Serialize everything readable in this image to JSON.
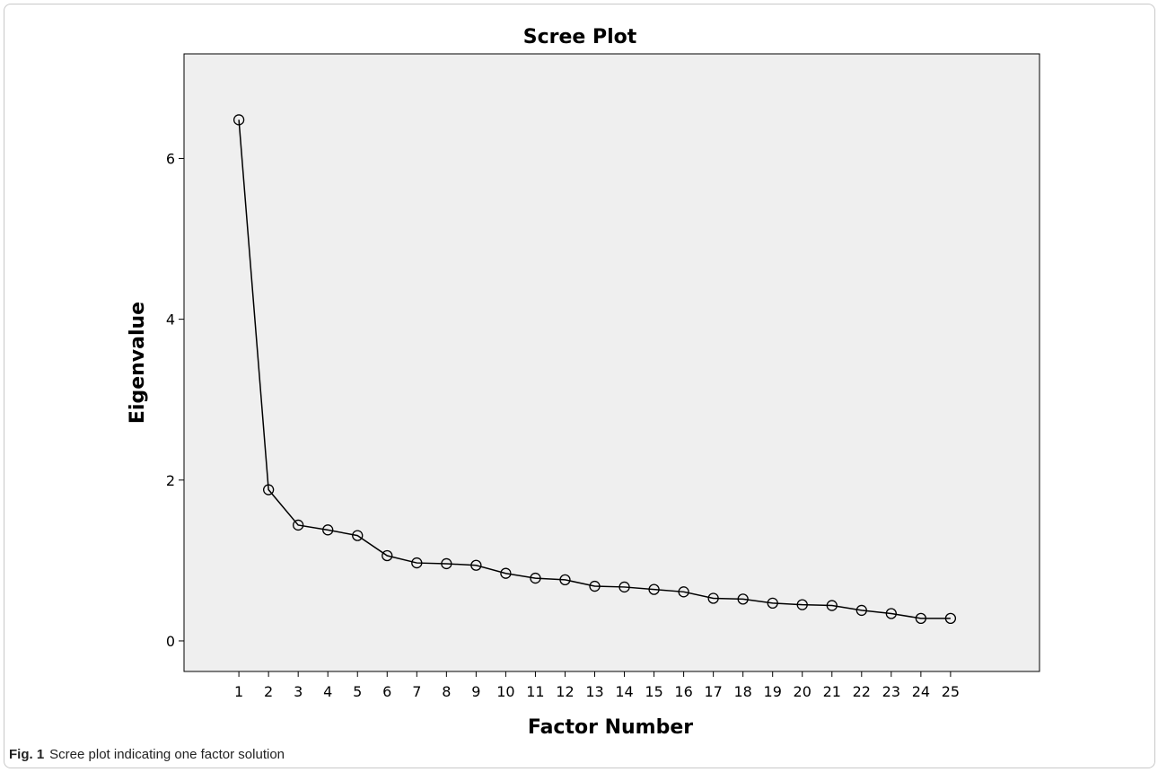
{
  "chart_data": {
    "type": "line",
    "title": "Scree Plot",
    "xlabel": "Factor Number",
    "ylabel": "Eigenvalue",
    "x": [
      1,
      2,
      3,
      4,
      5,
      6,
      7,
      8,
      9,
      10,
      11,
      12,
      13,
      14,
      15,
      16,
      17,
      18,
      19,
      20,
      21,
      22,
      23,
      24,
      25
    ],
    "values": [
      6.48,
      1.88,
      1.44,
      1.38,
      1.31,
      1.06,
      0.97,
      0.96,
      0.94,
      0.84,
      0.78,
      0.76,
      0.68,
      0.67,
      0.64,
      0.61,
      0.53,
      0.52,
      0.47,
      0.45,
      0.44,
      0.38,
      0.34,
      0.28,
      0.28
    ],
    "xticks": [
      "1",
      "2",
      "3",
      "4",
      "5",
      "6",
      "7",
      "8",
      "9",
      "10",
      "11",
      "12",
      "13",
      "14",
      "15",
      "16",
      "17",
      "18",
      "19",
      "20",
      "21",
      "22",
      "23",
      "24",
      "25"
    ],
    "yticks": [
      "0",
      "2",
      "4",
      "6"
    ],
    "ylim": [
      -0.38,
      7.3
    ],
    "xlim": [
      -0.85,
      28
    ],
    "grid": false,
    "marker": "open-circle",
    "colors": {
      "line": "#000000",
      "plot_background": "#efefef"
    }
  },
  "caption": {
    "label": "Fig. 1",
    "text": "Scree plot indicating one factor solution"
  }
}
